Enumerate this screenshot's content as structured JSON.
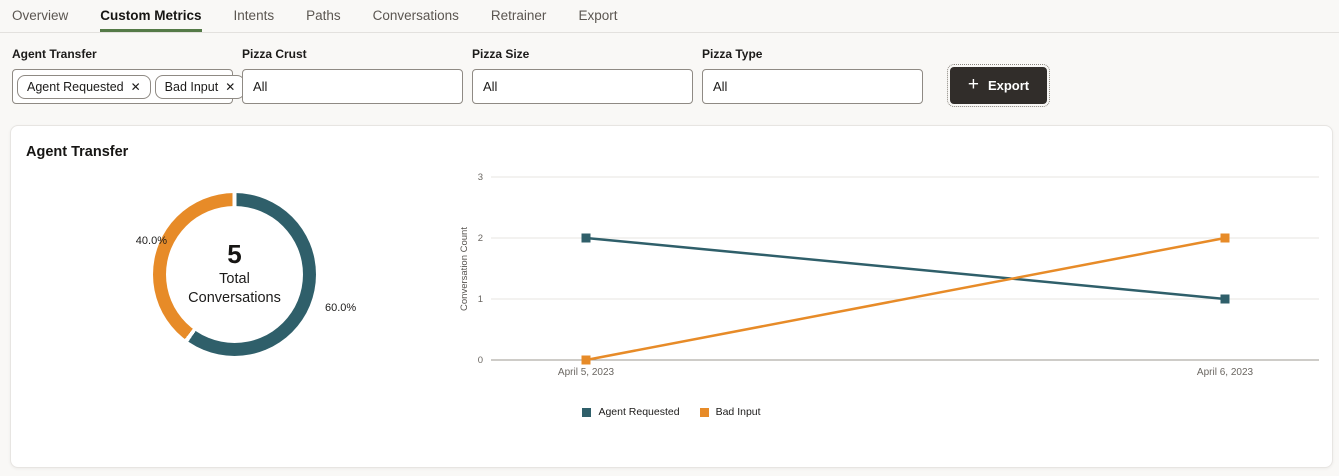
{
  "tabs": {
    "items": [
      {
        "label": "Overview",
        "active": false
      },
      {
        "label": "Custom Metrics",
        "active": true
      },
      {
        "label": "Intents",
        "active": false
      },
      {
        "label": "Paths",
        "active": false
      },
      {
        "label": "Conversations",
        "active": false
      },
      {
        "label": "Retrainer",
        "active": false
      },
      {
        "label": "Export",
        "active": false
      }
    ]
  },
  "filters": {
    "agent_transfer": {
      "label": "Agent Transfer",
      "chips": [
        {
          "label": "Agent Requested",
          "remove_glyph": "✕"
        },
        {
          "label": "Bad Input",
          "remove_glyph": "✕"
        }
      ]
    },
    "pizza_crust": {
      "label": "Pizza Crust",
      "value": "All"
    },
    "pizza_size": {
      "label": "Pizza Size",
      "value": "All"
    },
    "pizza_type": {
      "label": "Pizza Type",
      "value": "All"
    }
  },
  "export_button": {
    "label": "Export",
    "plus_glyph": "+"
  },
  "card": {
    "title": "Agent Transfer"
  },
  "colors": {
    "teal": "#2f5f6a",
    "orange": "#e78b28",
    "active_tab_underline": "#557a47",
    "button_bg": "#312d2a",
    "grid_line": "#e7e5e2",
    "axis_line": "#9c9892",
    "tick_text": "#6b6762"
  },
  "chart_data": [
    {
      "type": "pie",
      "donut": true,
      "title": "Agent Transfer",
      "slices": [
        {
          "label": "Agent Requested",
          "pct": 60.0,
          "display": "60.0%",
          "color": "#2f5f6a"
        },
        {
          "label": "Bad Input",
          "pct": 40.0,
          "display": "40.0%",
          "color": "#e78b28"
        }
      ],
      "center": {
        "value": "5",
        "line1": "Total",
        "line2": "Conversations"
      },
      "total_conversations": 5
    },
    {
      "type": "line",
      "x": [
        "April 5, 2023",
        "April 6, 2023"
      ],
      "series": [
        {
          "name": "Agent Requested",
          "values": [
            2,
            1
          ],
          "color": "#2f5f6a"
        },
        {
          "name": "Bad Input",
          "values": [
            0,
            2
          ],
          "color": "#e78b28"
        }
      ],
      "ylabel": "Conversation Count",
      "ylim": [
        0,
        3
      ],
      "yticks": [
        0,
        1,
        2,
        3
      ],
      "grid": true,
      "legend": {
        "position": "bottom"
      },
      "marker": "square"
    }
  ]
}
